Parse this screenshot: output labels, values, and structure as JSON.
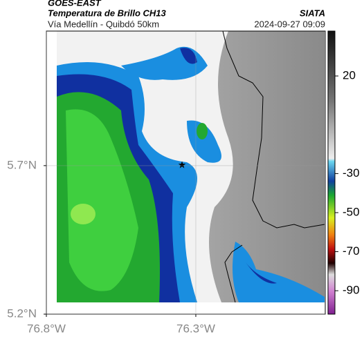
{
  "header": {
    "source": "GOES-EAST",
    "title": "Temperatura de Brillo CH13",
    "subtitle": "Vía Medellín - Quibdó 50km",
    "agency": "SIATA",
    "timestamp": "2024-09-27 09:09"
  },
  "map": {
    "xlim": [
      -76.8,
      -75.867
    ],
    "ylim": [
      5.2,
      6.153
    ],
    "xticks": [
      {
        "value": -76.8,
        "label": "76.8°W"
      },
      {
        "value": -76.3,
        "label": "76.3°W"
      }
    ],
    "yticks": [
      {
        "value": 5.2,
        "label": "5.2°N"
      },
      {
        "value": 5.7,
        "label": "5.7°N"
      }
    ]
  },
  "colorbar": {
    "clim": [
      -102,
      43
    ],
    "ticks": [
      20,
      -30,
      -50,
      -70,
      -90
    ]
  }
}
